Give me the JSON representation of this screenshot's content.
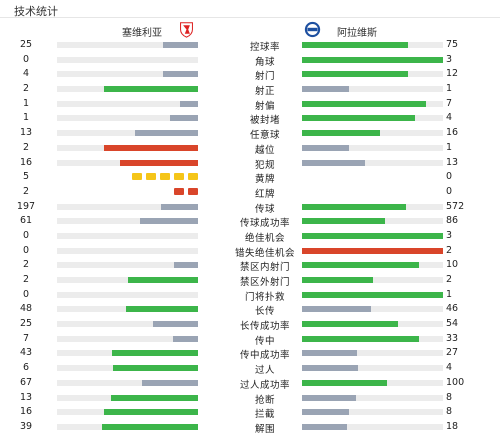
{
  "header": {
    "title": "技术统计"
  },
  "teams": {
    "home": {
      "name": "塞维利亚",
      "badge_icon": "sevilla-crest-icon"
    },
    "away": {
      "name": "阿拉维斯",
      "badge_icon": "alaves-crest-icon"
    }
  },
  "colors": {
    "green": "#3cb54a",
    "grey": "#9aa4b4",
    "red": "#d9452a",
    "yellow": "#f5c518",
    "cardred": "#d9452a",
    "track": "#ececec"
  },
  "stats": [
    {
      "label": "控球率",
      "home": "25",
      "away": "75",
      "home_frac": 0.25,
      "away_frac": 0.75,
      "home_color": "grey",
      "away_color": "green"
    },
    {
      "label": "角球",
      "home": "0",
      "away": "3",
      "home_frac": 0.0,
      "away_frac": 1.0,
      "home_color": "grey",
      "away_color": "green"
    },
    {
      "label": "射门",
      "home": "4",
      "away": "12",
      "home_frac": 0.25,
      "away_frac": 0.75,
      "home_color": "grey",
      "away_color": "green"
    },
    {
      "label": "射正",
      "home": "2",
      "away": "1",
      "home_frac": 0.67,
      "away_frac": 0.33,
      "home_color": "green",
      "away_color": "grey"
    },
    {
      "label": "射偏",
      "home": "1",
      "away": "7",
      "home_frac": 0.13,
      "away_frac": 0.88,
      "home_color": "grey",
      "away_color": "green"
    },
    {
      "label": "被封堵",
      "home": "1",
      "away": "4",
      "home_frac": 0.2,
      "away_frac": 0.8,
      "home_color": "grey",
      "away_color": "green"
    },
    {
      "label": "任意球",
      "home": "13",
      "away": "16",
      "home_frac": 0.45,
      "away_frac": 0.55,
      "home_color": "grey",
      "away_color": "green"
    },
    {
      "label": "越位",
      "home": "2",
      "away": "1",
      "home_frac": 0.67,
      "away_frac": 0.33,
      "home_color": "red",
      "away_color": "grey"
    },
    {
      "label": "犯规",
      "home": "16",
      "away": "13",
      "home_frac": 0.55,
      "away_frac": 0.45,
      "home_color": "red",
      "away_color": "grey"
    },
    {
      "label": "黄牌",
      "home": "5",
      "away": "0",
      "type": "cards",
      "home_cards": 5,
      "card_color": "yellow"
    },
    {
      "label": "红牌",
      "home": "2",
      "away": "0",
      "type": "cards",
      "home_cards": 2,
      "card_color": "cardred"
    },
    {
      "label": "传球",
      "home": "197",
      "away": "572",
      "home_frac": 0.26,
      "away_frac": 0.74,
      "home_color": "grey",
      "away_color": "green"
    },
    {
      "label": "传球成功率",
      "home": "61",
      "away": "86",
      "home_frac": 0.41,
      "away_frac": 0.59,
      "home_color": "grey",
      "away_color": "green"
    },
    {
      "label": "绝佳机会",
      "home": "0",
      "away": "3",
      "home_frac": 0.0,
      "away_frac": 1.0,
      "home_color": "grey",
      "away_color": "green"
    },
    {
      "label": "错失绝佳机会",
      "home": "0",
      "away": "2",
      "home_frac": 0.0,
      "away_frac": 1.0,
      "home_color": "grey",
      "away_color": "red"
    },
    {
      "label": "禁区内射门",
      "home": "2",
      "away": "10",
      "home_frac": 0.17,
      "away_frac": 0.83,
      "home_color": "grey",
      "away_color": "green"
    },
    {
      "label": "禁区外射门",
      "home": "2",
      "away": "2",
      "home_frac": 0.5,
      "away_frac": 0.5,
      "home_color": "green",
      "away_color": "green"
    },
    {
      "label": "门将扑救",
      "home": "0",
      "away": "1",
      "home_frac": 0.0,
      "away_frac": 1.0,
      "home_color": "grey",
      "away_color": "green"
    },
    {
      "label": "长传",
      "home": "48",
      "away": "46",
      "home_frac": 0.51,
      "away_frac": 0.49,
      "home_color": "green",
      "away_color": "grey"
    },
    {
      "label": "长传成功率",
      "home": "25",
      "away": "54",
      "home_frac": 0.32,
      "away_frac": 0.68,
      "home_color": "grey",
      "away_color": "green"
    },
    {
      "label": "传中",
      "home": "7",
      "away": "33",
      "home_frac": 0.18,
      "away_frac": 0.83,
      "home_color": "grey",
      "away_color": "green"
    },
    {
      "label": "传中成功率",
      "home": "43",
      "away": "27",
      "home_frac": 0.61,
      "away_frac": 0.39,
      "home_color": "green",
      "away_color": "grey"
    },
    {
      "label": "过人",
      "home": "6",
      "away": "4",
      "home_frac": 0.6,
      "away_frac": 0.4,
      "home_color": "green",
      "away_color": "grey"
    },
    {
      "label": "过人成功率",
      "home": "67",
      "away": "100",
      "home_frac": 0.4,
      "away_frac": 0.6,
      "home_color": "grey",
      "away_color": "green"
    },
    {
      "label": "抢断",
      "home": "13",
      "away": "8",
      "home_frac": 0.62,
      "away_frac": 0.38,
      "home_color": "green",
      "away_color": "grey"
    },
    {
      "label": "拦截",
      "home": "16",
      "away": "8",
      "home_frac": 0.67,
      "away_frac": 0.33,
      "home_color": "green",
      "away_color": "grey"
    },
    {
      "label": "解围",
      "home": "39",
      "away": "18",
      "home_frac": 0.68,
      "away_frac": 0.32,
      "home_color": "green",
      "away_color": "grey"
    }
  ]
}
